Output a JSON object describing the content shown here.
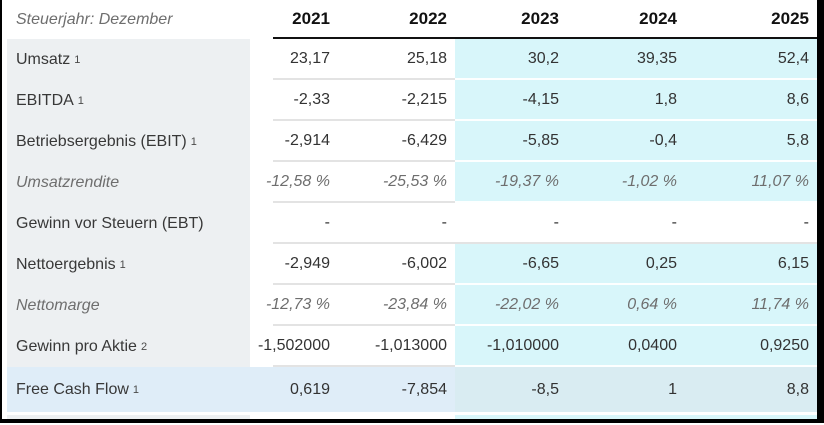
{
  "table": {
    "corner_label": "Steuerjahr: Dezember",
    "years": [
      "2021",
      "2022",
      "2023",
      "2024",
      "2025"
    ],
    "forecast_years": [
      "2023",
      "2024",
      "2025"
    ],
    "rows": [
      {
        "label": "Umsatz",
        "footnote": "1",
        "values": [
          "23,17",
          "25,18",
          "30,2",
          "39,35",
          "52,4"
        ]
      },
      {
        "label": "EBITDA",
        "footnote": "1",
        "values": [
          "-2,33",
          "-2,215",
          "-4,15",
          "1,8",
          "8,6"
        ]
      },
      {
        "label": "Betriebsergebnis (EBIT)",
        "footnote": "1",
        "values": [
          "-2,914",
          "-6,429",
          "-5,85",
          "-0,4",
          "5,8"
        ]
      },
      {
        "label": "Umsatzrendite",
        "values": [
          "-12,58 %",
          "-25,53 %",
          "-19,37 %",
          "-1,02 %",
          "11,07 %"
        ]
      },
      {
        "label": "Gewinn vor Steuern (EBT)",
        "values": [
          "-",
          "-",
          "-",
          "-",
          "-"
        ]
      },
      {
        "label": "Nettoergebnis",
        "footnote": "1",
        "values": [
          "-2,949",
          "-6,002",
          "-6,65",
          "0,25",
          "6,15"
        ]
      },
      {
        "label": "Nettomarge",
        "values": [
          "-12,73 %",
          "-23,84 %",
          "-22,02 %",
          "0,64 %",
          "11,74 %"
        ]
      },
      {
        "label": "Gewinn pro Aktie",
        "footnote": "2",
        "values": [
          "-1,502000",
          "-1,013000",
          "-1,010000",
          "0,0400",
          "0,9250"
        ]
      },
      {
        "label": "Free Cash Flow",
        "footnote": "1",
        "values": [
          "0,619",
          "-7,854",
          "-8,5",
          "1",
          "8,8"
        ]
      }
    ],
    "colors": {
      "label_column_bg": "#edf0f2",
      "forecast_bg": "#d8f6fa",
      "free_cash_flow_row_bg": "#dfedf8",
      "free_cash_flow_forecast_bg": "#d9ecf2",
      "header_underline": "#111111",
      "frame": "#000000",
      "muted_text": "#6e6e6e",
      "value_text": "#333333"
    }
  }
}
